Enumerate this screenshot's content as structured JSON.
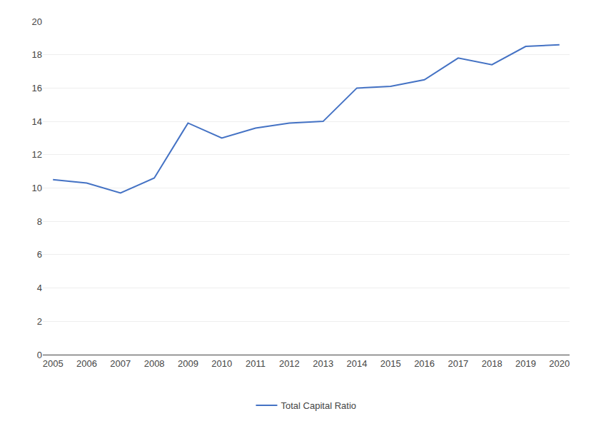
{
  "chart_data": {
    "type": "line",
    "x": [
      2005,
      2006,
      2007,
      2008,
      2009,
      2010,
      2011,
      2012,
      2013,
      2014,
      2015,
      2016,
      2017,
      2018,
      2019,
      2020
    ],
    "series": [
      {
        "name": "Total Capital Ratio",
        "color": "#4472C4",
        "values": [
          10.5,
          10.3,
          9.7,
          10.6,
          13.9,
          13.0,
          13.6,
          13.9,
          14.0,
          16.0,
          16.1,
          16.5,
          17.8,
          17.4,
          18.5,
          18.6
        ]
      }
    ],
    "xlim": [
      2004.7,
      2020.3
    ],
    "xticks": [
      2005,
      2006,
      2007,
      2008,
      2009,
      2010,
      2011,
      2012,
      2013,
      2014,
      2015,
      2016,
      2017,
      2018,
      2019,
      2020
    ],
    "ylim": [
      0,
      20
    ],
    "yticks": [
      0,
      2,
      4,
      6,
      8,
      10,
      12,
      14,
      16,
      18,
      20
    ],
    "grid": true,
    "legend": "bottom",
    "marker": "none",
    "line_style": "solid"
  }
}
